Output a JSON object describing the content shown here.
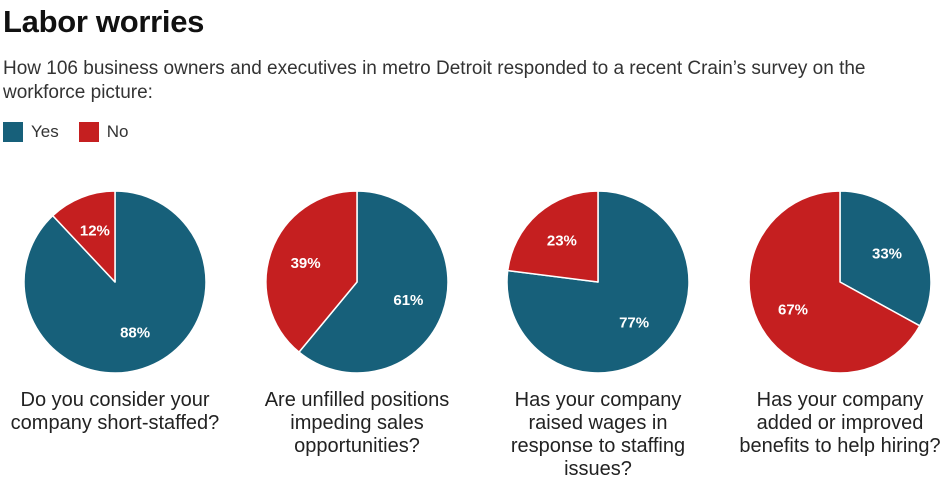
{
  "title": "Labor worries",
  "subtitle": "How 106 business owners and executives in metro Detroit responded to a recent Crain’s survey on the workforce picture:",
  "legend": [
    {
      "label": "Yes",
      "color": "#17607a"
    },
    {
      "label": "No",
      "color": "#c51f20"
    }
  ],
  "chart_data": {
    "type": "pie",
    "series_names": [
      "Yes",
      "No"
    ],
    "colors": {
      "Yes": "#17607a",
      "No": "#c51f20"
    },
    "pies": [
      {
        "question": "Do you consider your company short-staffed?",
        "slices": [
          {
            "name": "Yes",
            "value": 88,
            "label": "88%"
          },
          {
            "name": "No",
            "value": 12,
            "label": "12%"
          }
        ]
      },
      {
        "question": "Are unfilled positions impeding sales opportunities?",
        "slices": [
          {
            "name": "Yes",
            "value": 61,
            "label": "61%"
          },
          {
            "name": "No",
            "value": 39,
            "label": "39%"
          }
        ]
      },
      {
        "question": "Has your company raised wages in response to staffing issues?",
        "slices": [
          {
            "name": "Yes",
            "value": 77,
            "label": "77%"
          },
          {
            "name": "No",
            "value": 23,
            "label": "23%"
          }
        ]
      },
      {
        "question": "Has your company added or improved benefits to help hiring?",
        "slices": [
          {
            "name": "Yes",
            "value": 33,
            "label": "33%"
          },
          {
            "name": "No",
            "value": 67,
            "label": "67%"
          }
        ]
      }
    ]
  }
}
